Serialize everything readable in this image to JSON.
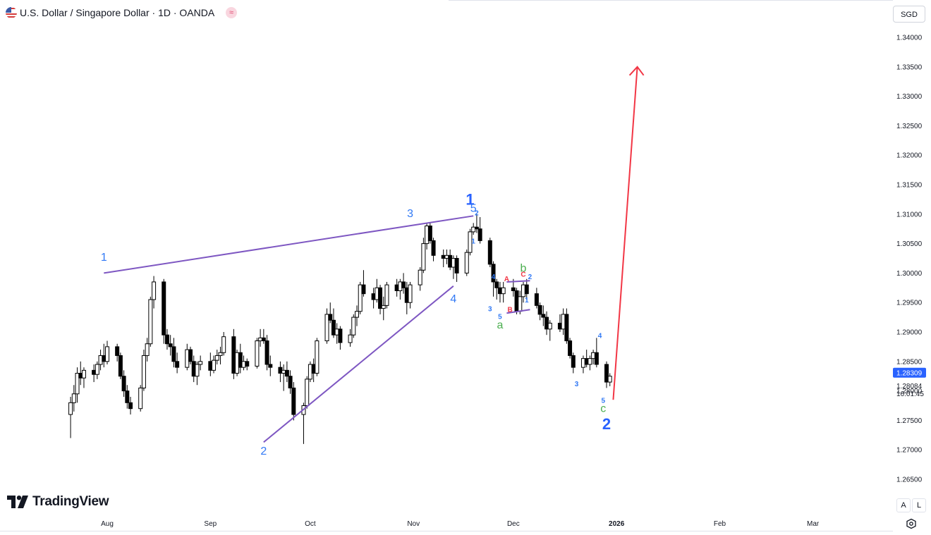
{
  "header": {
    "title": "U.S. Dollar / Singapore Dollar · 1D · OANDA",
    "badge": "≈",
    "currency_button": "SGD",
    "flag_icon": "usd-sgd-flag-icon"
  },
  "logo": {
    "text": "TradingView",
    "icon": "tradingview-logo-icon"
  },
  "corner_buttons": {
    "auto": "A",
    "log": "L",
    "settings_icon": "gear-icon"
  },
  "colors": {
    "bull_body": "#ffffff",
    "bear_body": "#000000",
    "wick": "#000000",
    "trendline": "#7e57c2",
    "arrow": "#f23645",
    "wave_blue": "#2962ff",
    "wave_label_blue": "#3179f5",
    "wave_green": "#4caf50",
    "wave_red": "#f23645",
    "last_price_bg": "#2962ff"
  },
  "chart_data": {
    "type": "candlestick",
    "symbol": "USDSGD",
    "timeframe": "1D",
    "ylim": [
      1.262,
      1.343
    ],
    "x_axis_ticks": [
      "Aug",
      "Sep",
      "Oct",
      "Nov",
      "Dec",
      "2026",
      "Feb",
      "Mar"
    ],
    "x_tick_dates": [
      "2025-08-01",
      "2025-09-01",
      "2025-10-01",
      "2025-11-01",
      "2025-12-01",
      "2026-01-01",
      "2026-02-01",
      "2026-03-01"
    ],
    "y_axis_ticks": [
      "1.34000",
      "1.33500",
      "1.33000",
      "1.32500",
      "1.32000",
      "1.31500",
      "1.31000",
      "1.30500",
      "1.30000",
      "1.29500",
      "1.29000",
      "1.28500",
      "1.28000",
      "1.27500",
      "1.27000",
      "1.26500"
    ],
    "last_price": {
      "value": "1.28309"
    },
    "current_price": {
      "value": "1.28084",
      "countdown": "16:01:45"
    },
    "candles": [
      [
        1.276,
        1.279,
        1.272,
        1.278
      ],
      [
        1.278,
        1.281,
        1.2765,
        1.2795
      ],
      [
        1.2795,
        1.284,
        1.278,
        1.283
      ],
      [
        1.283,
        1.285,
        1.281,
        1.2822
      ],
      [
        1.2822,
        1.284,
        1.2805,
        1.2835
      ],
      [
        1.2835,
        1.2845,
        1.2815,
        1.2828
      ],
      [
        1.2828,
        1.285,
        1.282,
        1.2845
      ],
      [
        1.2845,
        1.287,
        1.2835,
        1.286
      ],
      [
        1.286,
        1.288,
        1.284,
        1.285
      ],
      [
        1.285,
        1.2885,
        1.2845,
        1.2875
      ],
      [
        1.2875,
        1.288,
        1.285,
        1.286
      ],
      [
        1.286,
        1.2865,
        1.282,
        1.2825
      ],
      [
        1.2825,
        1.2835,
        1.279,
        1.28
      ],
      [
        1.28,
        1.281,
        1.277,
        1.278
      ],
      [
        1.278,
        1.279,
        1.276,
        1.277
      ],
      [
        1.277,
        1.281,
        1.2765,
        1.2805
      ],
      [
        1.2805,
        1.287,
        1.28,
        1.286
      ],
      [
        1.286,
        1.289,
        1.285,
        1.288
      ],
      [
        1.288,
        1.296,
        1.2875,
        1.2955
      ],
      [
        1.2955,
        1.2995,
        1.294,
        1.2985
      ],
      [
        1.2985,
        1.299,
        1.288,
        1.2895
      ],
      [
        1.2895,
        1.2905,
        1.287,
        1.288
      ],
      [
        1.288,
        1.2895,
        1.286,
        1.2875
      ],
      [
        1.2875,
        1.289,
        1.284,
        1.285
      ],
      [
        1.285,
        1.2865,
        1.283,
        1.284
      ],
      [
        1.284,
        1.288,
        1.2835,
        1.287
      ],
      [
        1.287,
        1.2875,
        1.2845,
        1.285
      ],
      [
        1.285,
        1.286,
        1.2815,
        1.2825
      ],
      [
        1.2825,
        1.285,
        1.281,
        1.2845
      ],
      [
        1.2845,
        1.286,
        1.2835,
        1.285
      ],
      [
        1.285,
        1.2865,
        1.2825,
        1.2835
      ],
      [
        1.2835,
        1.286,
        1.283,
        1.2852
      ],
      [
        1.2852,
        1.287,
        1.2845,
        1.286
      ],
      [
        1.286,
        1.2875,
        1.2845,
        1.2865
      ],
      [
        1.2865,
        1.29,
        1.286,
        1.2892
      ],
      [
        1.2892,
        1.2905,
        1.282,
        1.283
      ],
      [
        1.283,
        1.287,
        1.2825,
        1.2865
      ],
      [
        1.2865,
        1.288,
        1.283,
        1.284
      ],
      [
        1.284,
        1.286,
        1.2835,
        1.285
      ],
      [
        1.285,
        1.2855,
        1.2835,
        1.2842
      ],
      [
        1.2842,
        1.289,
        1.2838,
        1.2885
      ],
      [
        1.2885,
        1.2905,
        1.2875,
        1.289
      ],
      [
        1.289,
        1.2905,
        1.288,
        1.2885
      ],
      [
        1.2885,
        1.2895,
        1.2835,
        1.2845
      ],
      [
        1.2845,
        1.286,
        1.2825,
        1.284
      ],
      [
        1.284,
        1.285,
        1.2815,
        1.283
      ],
      [
        1.283,
        1.2845,
        1.28,
        1.2835
      ],
      [
        1.2835,
        1.285,
        1.2815,
        1.2825
      ],
      [
        1.2825,
        1.2835,
        1.2795,
        1.2805
      ],
      [
        1.2805,
        1.2815,
        1.275,
        1.276
      ],
      [
        1.276,
        1.278,
        1.271,
        1.2775
      ],
      [
        1.2775,
        1.2825,
        1.277,
        1.282
      ],
      [
        1.282,
        1.285,
        1.2815,
        1.2845
      ],
      [
        1.2845,
        1.2855,
        1.2815,
        1.283
      ],
      [
        1.283,
        1.289,
        1.2825,
        1.2885
      ],
      [
        1.2885,
        1.294,
        1.288,
        1.293
      ],
      [
        1.293,
        1.295,
        1.2915,
        1.292
      ],
      [
        1.292,
        1.294,
        1.289,
        1.2895
      ],
      [
        1.2895,
        1.2915,
        1.288,
        1.2905
      ],
      [
        1.2905,
        1.291,
        1.287,
        1.2882
      ],
      [
        1.2882,
        1.2905,
        1.2875,
        1.2895
      ],
      [
        1.2895,
        1.293,
        1.289,
        1.2925
      ],
      [
        1.2925,
        1.2945,
        1.291,
        1.2935
      ],
      [
        1.2935,
        1.2985,
        1.293,
        1.298
      ],
      [
        1.298,
        1.3005,
        1.296,
        1.2965
      ],
      [
        1.2965,
        1.2975,
        1.294,
        1.2955
      ],
      [
        1.2955,
        1.299,
        1.295,
        1.2975
      ],
      [
        1.2975,
        1.298,
        1.293,
        1.294
      ],
      [
        1.294,
        1.296,
        1.292,
        1.2945
      ],
      [
        1.2945,
        1.2985,
        1.294,
        1.298
      ],
      [
        1.298,
        1.299,
        1.296,
        1.297
      ],
      [
        1.297,
        1.299,
        1.2955,
        1.2985
      ],
      [
        1.2985,
        1.3,
        1.2965,
        1.2975
      ],
      [
        1.2975,
        1.2985,
        1.293,
        1.295
      ],
      [
        1.295,
        1.2985,
        1.294,
        1.298
      ],
      [
        1.298,
        1.301,
        1.297,
        1.3005
      ],
      [
        1.3005,
        1.306,
        1.3,
        1.305
      ],
      [
        1.305,
        1.3085,
        1.304,
        1.308
      ],
      [
        1.308,
        1.3085,
        1.305,
        1.3055
      ],
      [
        1.3055,
        1.306,
        1.302,
        1.303
      ],
      [
        1.303,
        1.304,
        1.301,
        1.3025
      ],
      [
        1.3025,
        1.304,
        1.3015,
        1.303
      ],
      [
        1.303,
        1.304,
        1.3005,
        1.301
      ],
      [
        1.301,
        1.303,
        1.299,
        1.3025
      ],
      [
        1.3025,
        1.303,
        1.2985,
        1.3
      ],
      [
        1.3,
        1.304,
        1.2995,
        1.3035
      ],
      [
        1.3035,
        1.3075,
        1.303,
        1.307
      ],
      [
        1.307,
        1.3085,
        1.3065,
        1.3078
      ],
      [
        1.3078,
        1.31,
        1.3068,
        1.3075
      ],
      [
        1.3075,
        1.3095,
        1.305,
        1.3055
      ],
      [
        1.3055,
        1.306,
        1.301,
        1.3015
      ],
      [
        1.3015,
        1.302,
        1.296,
        1.2985
      ],
      [
        1.2985,
        1.299,
        1.2955,
        1.2975
      ],
      [
        1.2975,
        1.2985,
        1.295,
        1.2965
      ],
      [
        1.2965,
        1.2985,
        1.295,
        1.2975
      ],
      [
        1.2975,
        1.299,
        1.296,
        1.297
      ],
      [
        1.297,
        1.2975,
        1.293,
        1.2935
      ],
      [
        1.2935,
        1.297,
        1.293,
        1.296
      ],
      [
        1.296,
        1.2985,
        1.295,
        1.298
      ],
      [
        1.298,
        1.299,
        1.2955,
        1.2965
      ],
      [
        1.2965,
        1.2975,
        1.294,
        1.2945
      ],
      [
        1.2945,
        1.295,
        1.292,
        1.293
      ],
      [
        1.293,
        1.2945,
        1.291,
        1.2925
      ],
      [
        1.2925,
        1.2935,
        1.2895,
        1.2905
      ],
      [
        1.2905,
        1.292,
        1.2885,
        1.2915
      ],
      [
        1.2915,
        1.293,
        1.29,
        1.2905
      ],
      [
        1.2905,
        1.294,
        1.2895,
        1.293
      ],
      [
        1.293,
        1.294,
        1.288,
        1.2885
      ],
      [
        1.2885,
        1.289,
        1.2855,
        1.286
      ],
      [
        1.286,
        1.2865,
        1.283,
        1.284
      ],
      [
        1.284,
        1.286,
        1.283,
        1.2855
      ],
      [
        1.2855,
        1.287,
        1.284,
        1.2845
      ],
      [
        1.2845,
        1.286,
        1.2835,
        1.2855
      ],
      [
        1.2855,
        1.287,
        1.2845,
        1.2865
      ],
      [
        1.2865,
        1.289,
        1.284,
        1.2845
      ],
      [
        1.2845,
        1.285,
        1.2805,
        1.2815
      ],
      [
        1.2815,
        1.283,
        1.2808,
        1.2825
      ]
    ],
    "trendlines": [
      {
        "from": [
          "2025-07-31",
          1.3
        ],
        "to": [
          "2025-11-19",
          1.3097
        ]
      },
      {
        "from": [
          "2025-09-17",
          1.2713
        ],
        "to": [
          "2025-11-13",
          1.2978
        ]
      },
      {
        "from": [
          "2025-11-29",
          1.2985
        ],
        "to": [
          "2025-12-06",
          1.2987
        ]
      },
      {
        "from": [
          "2025-11-29",
          1.2932
        ],
        "to": [
          "2025-12-06",
          1.2938
        ]
      }
    ],
    "projection_arrow": {
      "from": [
        "2025-12-31",
        1.2785
      ],
      "to": [
        "2026-01-03",
        1.335
      ]
    },
    "wave_labels": [
      {
        "text": "1",
        "date": "2025-07-31",
        "price": 1.3021,
        "color": "blue",
        "size": "medium"
      },
      {
        "text": "2",
        "date": "2025-09-17",
        "price": 1.2692,
        "color": "blue",
        "size": "medium"
      },
      {
        "text": "3",
        "date": "2025-10-31",
        "price": 1.3095,
        "color": "blue",
        "size": "medium"
      },
      {
        "text": "4",
        "date": "2025-11-13",
        "price": 1.295,
        "color": "blue",
        "size": "medium"
      },
      {
        "text": "1",
        "date": "2025-11-18",
        "price": 1.3116,
        "color": "blue",
        "size": "large"
      },
      {
        "text": "5",
        "date": "2025-11-19",
        "price": 1.3104,
        "color": "blue",
        "size": "medium"
      },
      {
        "text": "2",
        "date": "2025-11-20",
        "price": 1.3098,
        "color": "blue",
        "size": "small"
      },
      {
        "text": "1",
        "date": "2025-11-19",
        "price": 1.305,
        "color": "blue",
        "size": "small"
      },
      {
        "text": "4",
        "date": "2025-11-25",
        "price": 1.299,
        "color": "blue",
        "size": "small"
      },
      {
        "text": "3",
        "date": "2025-11-24",
        "price": 1.2935,
        "color": "blue",
        "size": "small"
      },
      {
        "text": "5",
        "date": "2025-11-27",
        "price": 1.2922,
        "color": "blue",
        "size": "small"
      },
      {
        "text": "A",
        "date": "2025-11-29",
        "price": 1.2986,
        "color": "red",
        "size": "small"
      },
      {
        "text": "B",
        "date": "2025-11-30",
        "price": 1.2934,
        "color": "red",
        "size": "small"
      },
      {
        "text": "C",
        "date": "2025-12-04",
        "price": 1.2994,
        "color": "red",
        "size": "small"
      },
      {
        "text": "a",
        "date": "2025-11-27",
        "price": 1.2906,
        "color": "green",
        "size": "medium"
      },
      {
        "text": "b",
        "date": "2025-12-04",
        "price": 1.3002,
        "color": "green",
        "size": "medium"
      },
      {
        "text": "2",
        "date": "2025-12-06",
        "price": 1.299,
        "color": "blue",
        "size": "small"
      },
      {
        "text": "1",
        "date": "2025-12-05",
        "price": 1.295,
        "color": "blue",
        "size": "small"
      },
      {
        "text": "3",
        "date": "2025-12-20",
        "price": 1.2808,
        "color": "blue",
        "size": "small"
      },
      {
        "text": "4",
        "date": "2025-12-27",
        "price": 1.289,
        "color": "blue",
        "size": "small"
      },
      {
        "text": "5",
        "date": "2025-12-28",
        "price": 1.278,
        "color": "blue",
        "size": "small"
      },
      {
        "text": "c",
        "date": "2025-12-28",
        "price": 1.2764,
        "color": "green",
        "size": "medium"
      },
      {
        "text": "2",
        "date": "2025-12-29",
        "price": 1.2735,
        "color": "blue",
        "size": "large"
      }
    ]
  }
}
